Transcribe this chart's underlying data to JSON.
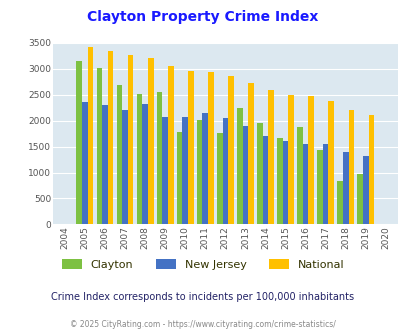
{
  "title": "Clayton Property Crime Index",
  "years": [
    2004,
    2005,
    2006,
    2007,
    2008,
    2009,
    2010,
    2011,
    2012,
    2013,
    2014,
    2015,
    2016,
    2017,
    2018,
    2019,
    2020
  ],
  "clayton": [
    null,
    3150,
    3020,
    2680,
    2520,
    2560,
    1790,
    2010,
    1770,
    2250,
    1960,
    1670,
    1880,
    1440,
    830,
    980,
    null
  ],
  "new_jersey": [
    null,
    2360,
    2310,
    2210,
    2330,
    2080,
    2080,
    2150,
    2050,
    1890,
    1710,
    1610,
    1550,
    1550,
    1400,
    1310,
    null
  ],
  "national": [
    null,
    3420,
    3340,
    3260,
    3200,
    3050,
    2960,
    2930,
    2870,
    2730,
    2590,
    2490,
    2470,
    2380,
    2210,
    2100,
    null
  ],
  "clayton_color": "#7DC142",
  "nj_color": "#4472C4",
  "national_color": "#FFC000",
  "bg_color": "#dce8f0",
  "ylim": [
    0,
    3500
  ],
  "yticks": [
    0,
    500,
    1000,
    1500,
    2000,
    2500,
    3000,
    3500
  ],
  "title_color": "#1a1aff",
  "subtitle": "Crime Index corresponds to incidents per 100,000 inhabitants",
  "subtitle_color": "#222266",
  "footer": "© 2025 CityRating.com - https://www.cityrating.com/crime-statistics/",
  "footer_color": "#888888",
  "legend_labels": [
    "Clayton",
    "New Jersey",
    "National"
  ],
  "legend_text_color": "#333300"
}
